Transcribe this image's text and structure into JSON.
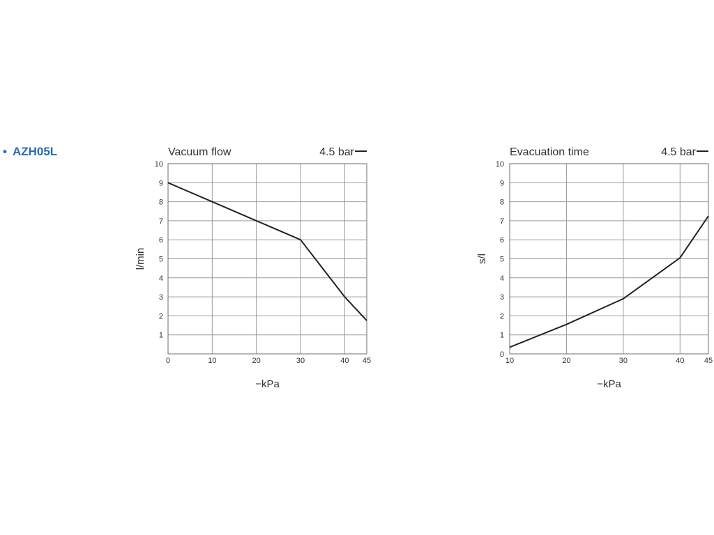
{
  "heading": {
    "bullet": "•",
    "text": "AZH05L"
  },
  "chart_data": [
    {
      "type": "line",
      "title": "Vacuum flow",
      "legend": "4.5 bar",
      "legend_placement": "top-right",
      "xlabel": "−kPa",
      "ylabel": "l/min",
      "x_ticks": [
        "0",
        "10",
        "20",
        "30",
        "40",
        "45"
      ],
      "y_ticks": [
        "1",
        "2",
        "3",
        "4",
        "5",
        "6",
        "7",
        "8",
        "9",
        "10"
      ],
      "xlim": [
        0,
        45
      ],
      "ylim": [
        0,
        10
      ],
      "grid": true,
      "series": [
        {
          "x": [
            0,
            10,
            20,
            30,
            40,
            45
          ],
          "y": [
            9,
            8,
            7,
            6,
            3,
            1.75
          ]
        }
      ],
      "color": "#222222"
    },
    {
      "type": "line",
      "title": "Evacuation time",
      "legend": "4.5 bar",
      "legend_placement": "top-right",
      "xlabel": "−kPa",
      "ylabel": "s/l",
      "x_ticks": [
        "10",
        "20",
        "30",
        "40",
        "45"
      ],
      "y_ticks": [
        "0",
        "1",
        "2",
        "3",
        "4",
        "5",
        "6",
        "7",
        "8",
        "9",
        "10"
      ],
      "xlim": [
        10,
        45
      ],
      "ylim": [
        0,
        10
      ],
      "grid": true,
      "series": [
        {
          "x": [
            10,
            20,
            30,
            40,
            45
          ],
          "y": [
            0.35,
            1.55,
            2.9,
            5.05,
            7.25
          ]
        }
      ],
      "color": "#222222"
    }
  ]
}
